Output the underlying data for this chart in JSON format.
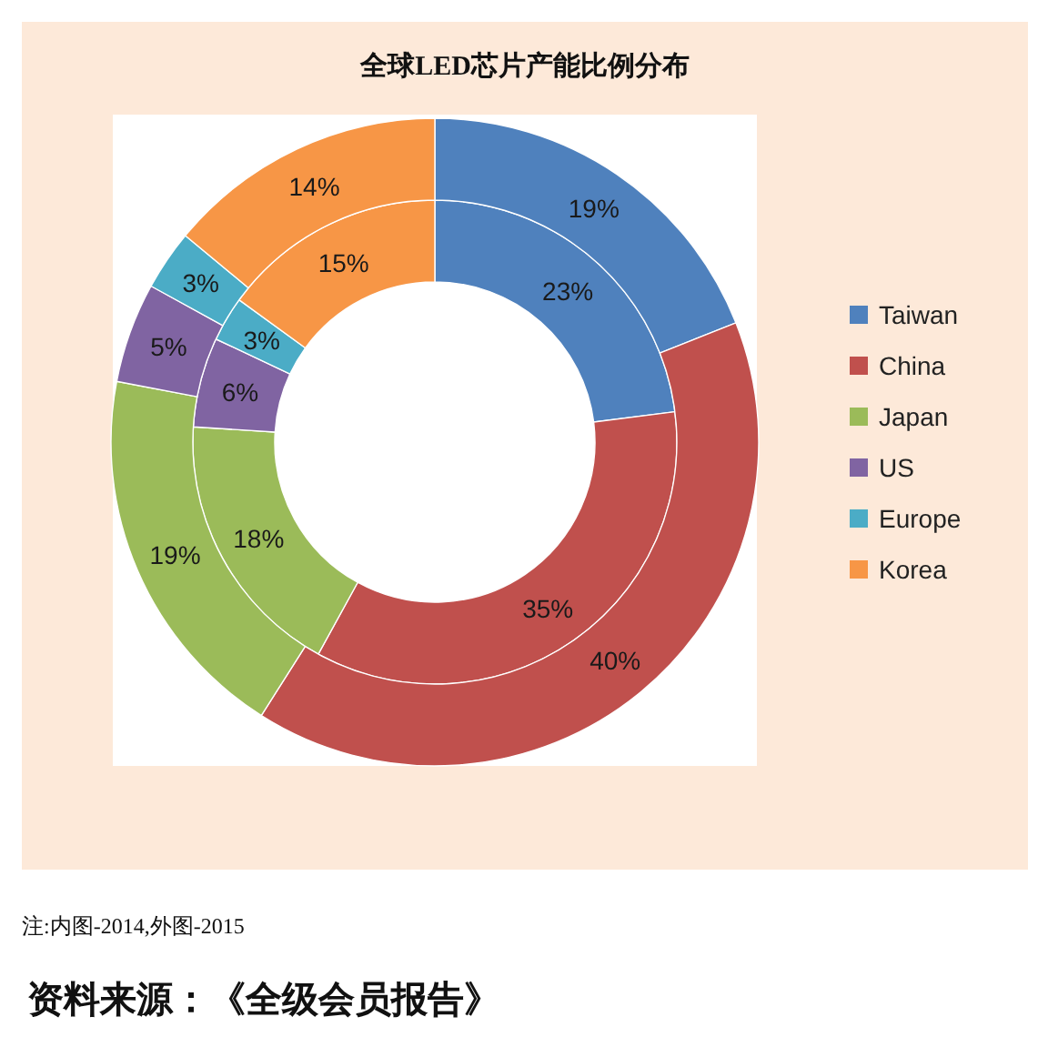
{
  "chart_data": {
    "type": "donut",
    "title": "全球LED芯片产能比例分布",
    "categories": [
      "Taiwan",
      "China",
      "Japan",
      "US",
      "Europe",
      "Korea"
    ],
    "colors": [
      "#4f81bd",
      "#c0504d",
      "#9bbb59",
      "#8064a2",
      "#4bacc6",
      "#f79646"
    ],
    "series": [
      {
        "values": [
          23,
          35,
          18,
          6,
          3,
          15
        ],
        "value_labels": [
          "23%",
          "35%",
          "18%",
          "6%",
          "3%",
          "15%"
        ]
      },
      {
        "values": [
          19,
          40,
          19,
          5,
          3,
          14
        ],
        "value_labels": [
          "19%",
          "40%",
          "19%",
          "5%",
          "3%",
          "14%"
        ]
      }
    ],
    "legend": "right",
    "annotations": [
      "注:内图-2014,外图-2015",
      "资料来源：《全级会员报告》"
    ]
  }
}
